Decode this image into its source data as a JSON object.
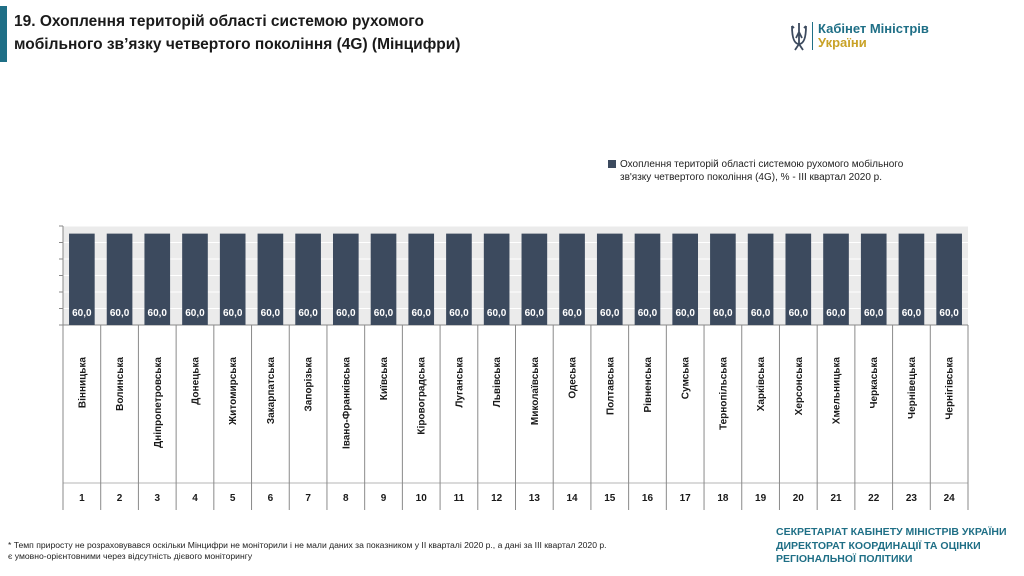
{
  "header": {
    "title_line1": "19. Охоплення територій області системою рухомого",
    "title_line2": "мобільного зв’язку четвертого покоління (4G) (Мінцифри)"
  },
  "logo": {
    "line1": "Кабінет Міністрів",
    "line2": "України",
    "icon": "trident-icon"
  },
  "colors": {
    "accent": "#1f6f86",
    "bar": "#3c4a5e",
    "plot_bg": "#ebebeb",
    "gold": "#c9a227"
  },
  "chart_data": {
    "type": "bar",
    "categories": [
      "Вінницька",
      "Волинська",
      "Дніпропетровська",
      "Донецька",
      "Житомирська",
      "Закарпатська",
      "Запорізька",
      "Івано-Франківська",
      "Київська",
      "Кіровоградська",
      "Луганська",
      "Львівська",
      "Миколаївська",
      "Одеська",
      "Полтавська",
      "Рівненська",
      "Сумська",
      "Тернопільська",
      "Харківська",
      "Херсонська",
      "Хмельницька",
      "Черкаська",
      "Чернівецька",
      "Чернігівська"
    ],
    "numbers": [
      "1",
      "2",
      "3",
      "4",
      "5",
      "6",
      "7",
      "8",
      "9",
      "10",
      "11",
      "12",
      "13",
      "14",
      "15",
      "16",
      "17",
      "18",
      "19",
      "20",
      "21",
      "22",
      "23",
      "24"
    ],
    "series": [
      {
        "name": "Охоплення територій області системою рухомого мобільного зв'язку четвертого покоління (4G), %  - ІІІ квартал 2020 р.",
        "values": [
          60.0,
          60.0,
          60.0,
          60.0,
          60.0,
          60.0,
          60.0,
          60.0,
          60.0,
          60.0,
          60.0,
          60.0,
          60.0,
          60.0,
          60.0,
          60.0,
          60.0,
          60.0,
          60.0,
          60.0,
          60.0,
          60.0,
          60.0,
          60.0
        ],
        "labels": [
          "60,0",
          "60,0",
          "60,0",
          "60,0",
          "60,0",
          "60,0",
          "60,0",
          "60,0",
          "60,0",
          "60,0",
          "60,0",
          "60,0",
          "60,0",
          "60,0",
          "60,0",
          "60,0",
          "60,0",
          "60,0",
          "60,0",
          "60,0",
          "60,0",
          "60,0",
          "60,0",
          "60,0"
        ]
      }
    ],
    "ylim": [
      0,
      65
    ],
    "grid": true,
    "legend_position": "top-right"
  },
  "legend": {
    "line1": "Охоплення територій області системою рухомого мобільного",
    "line2": "зв'язку четвертого покоління (4G), %  - ІІІ квартал 2020 р."
  },
  "footer": {
    "footnote_line1": "* Темп приросту не розраховувався оскільки Мінцифри не моніторили і не мали даних за показником у ІІ кварталі 2020 р., а дані за ІІІ квартал 2020 р.",
    "footnote_line2": "  є умовно-орієнтовними через відсутність дієвого моніторингу",
    "secretariat_line1": "СЕКРЕТАРІАТ КАБІНЕТУ МІНІСТРІВ УКРАЇНИ",
    "secretariat_line2": "ДИРЕКТОРАТ КООРДИНАЦІЇ ТА ОЦІНКИ",
    "secretariat_line3": "РЕГІОНАЛЬНОЇ ПОЛІТИКИ"
  }
}
